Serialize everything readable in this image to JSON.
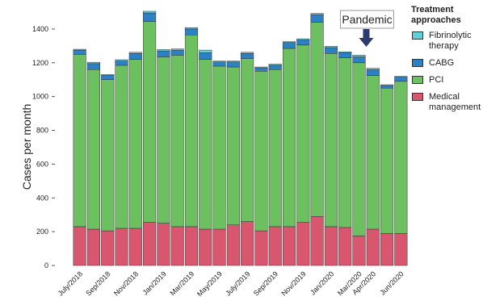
{
  "chart_data": {
    "type": "stacked_bar",
    "y_label": "Cases per month",
    "legend_title": "Treatment approaches",
    "annotation": "Pandemic",
    "annotation_category": 20,
    "categories": [
      "July/2018",
      null,
      "Sep/2018",
      null,
      "Nov/2018",
      null,
      "Jan/2019",
      null,
      "Mar/2019",
      null,
      "May/2019",
      null,
      "July/2019",
      null,
      "Sep/2019",
      null,
      "Nov/2019",
      null,
      "Jan/2020",
      null,
      "Mar/2020",
      "Apr/2020",
      null,
      "Jun/2020"
    ],
    "series": [
      {
        "name": "Medical management",
        "color": "#d9566f",
        "values": [
          230,
          215,
          205,
          220,
          220,
          255,
          250,
          230,
          230,
          215,
          215,
          240,
          260,
          205,
          230,
          230,
          255,
          290,
          230,
          225,
          175,
          215,
          190,
          190
        ]
      },
      {
        "name": "PCI",
        "color": "#6cc060",
        "values": [
          1020,
          945,
          895,
          965,
          1000,
          1190,
          985,
          1015,
          1135,
          1005,
          965,
          935,
          965,
          945,
          930,
          1055,
          1050,
          1150,
          1025,
          1005,
          1025,
          910,
          860,
          900
        ]
      },
      {
        "name": "CABG",
        "color": "#2b80c6",
        "values": [
          25,
          35,
          25,
          25,
          35,
          50,
          35,
          30,
          35,
          40,
          25,
          30,
          30,
          20,
          25,
          35,
          30,
          45,
          35,
          30,
          35,
          35,
          15,
          25
        ]
      },
      {
        "name": "Fibrinolytic therapy",
        "color": "#62d0d8",
        "values": [
          5,
          8,
          5,
          8,
          7,
          10,
          8,
          7,
          8,
          15,
          5,
          5,
          7,
          5,
          7,
          5,
          7,
          7,
          7,
          5,
          10,
          7,
          5,
          5
        ]
      }
    ],
    "ylim": [
      0,
      1500
    ],
    "yticks": [
      0,
      200,
      400,
      600,
      800,
      1000,
      1200,
      1400
    ]
  }
}
